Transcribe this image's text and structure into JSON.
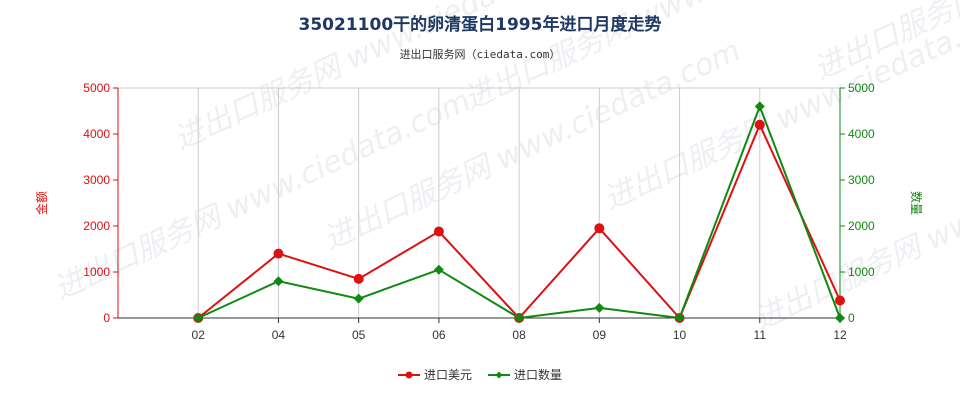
{
  "chart_data": {
    "type": "line",
    "title": "35021100干的卵清蛋白1995年进口月度走势",
    "subtitle": "进出口服务网（ciedata.com）",
    "categories": [
      "02",
      "04",
      "05",
      "06",
      "08",
      "09",
      "10",
      "11",
      "12"
    ],
    "y_left": {
      "label": "金额",
      "ylim": [
        0,
        5000
      ],
      "ticks": [
        0,
        1000,
        2000,
        3000,
        4000,
        5000
      ],
      "color": "#dd1111"
    },
    "y_right": {
      "label": "数量",
      "ylim": [
        0,
        5000
      ],
      "ticks": [
        0,
        1000,
        2000,
        3000,
        4000,
        5000
      ],
      "color": "#118811"
    },
    "series": [
      {
        "name": "进口美元",
        "axis": "left",
        "color": "#dd1111",
        "marker": "circle",
        "values": [
          0,
          1400,
          850,
          1880,
          0,
          1950,
          0,
          4200,
          380
        ]
      },
      {
        "name": "进口数量",
        "axis": "right",
        "color": "#118811",
        "marker": "diamond",
        "values": [
          0,
          800,
          420,
          1050,
          0,
          220,
          0,
          4600,
          0
        ]
      }
    ],
    "grid": "vertical",
    "legend_position": "bottom-center",
    "watermark": "进出口服务网 www.ciedata.com"
  }
}
